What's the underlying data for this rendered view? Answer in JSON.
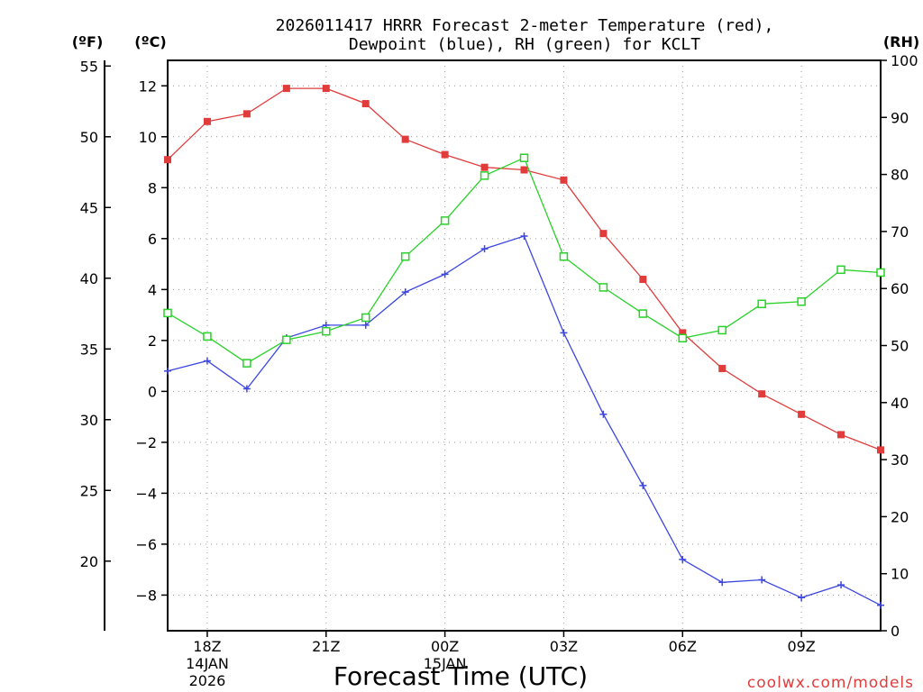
{
  "chart_data": {
    "type": "line",
    "title_line1": "2026011417 HRRR Forecast 2-meter Temperature (red),",
    "title_line2": "Dewpoint (blue), RH (green) for KCLT",
    "xlabel": "Forecast Time (UTC)",
    "credit": "coolwx.com/models",
    "units": {
      "fahrenheit": "(ºF)",
      "celsius": "(ºC)",
      "rh": "(RH)"
    },
    "x_hours": [
      17,
      18,
      19,
      20,
      21,
      22,
      23,
      24,
      25,
      26,
      27,
      28,
      29,
      30,
      31,
      32,
      33,
      34,
      35
    ],
    "x_range": [
      17,
      35
    ],
    "x_ticks": [
      {
        "hour": 18,
        "label": "18Z",
        "sub1": "14JAN",
        "sub2": "2026"
      },
      {
        "hour": 21,
        "label": "21Z",
        "sub1": "",
        "sub2": ""
      },
      {
        "hour": 24,
        "label": "00Z",
        "sub1": "15JAN",
        "sub2": ""
      },
      {
        "hour": 27,
        "label": "03Z",
        "sub1": "",
        "sub2": ""
      },
      {
        "hour": 30,
        "label": "06Z",
        "sub1": "",
        "sub2": ""
      },
      {
        "hour": 33,
        "label": "09Z",
        "sub1": "",
        "sub2": ""
      }
    ],
    "celsius_range": [
      -9.4,
      13
    ],
    "celsius_ticks": [
      12,
      10,
      8,
      6,
      4,
      2,
      0,
      -2,
      -4,
      -6,
      -8
    ],
    "celsius_tick_labels": [
      "12",
      "10",
      "8",
      "6",
      "4",
      "2",
      "0",
      "−2",
      "−4",
      "−6",
      "−8"
    ],
    "fahrenheit_ticks": [
      55,
      50,
      45,
      40,
      35,
      30,
      25,
      20
    ],
    "fahrenheit_tick_labels": [
      "55",
      "50",
      "45",
      "40",
      "35",
      "30",
      "25",
      "20"
    ],
    "rh_range": [
      0,
      100
    ],
    "rh_ticks": [
      100,
      90,
      80,
      70,
      60,
      50,
      40,
      30,
      20,
      10,
      0
    ],
    "rh_tick_labels": [
      "100",
      "90",
      "80",
      "70",
      "60",
      "50",
      "40",
      "30",
      "20",
      "10",
      "0"
    ],
    "series": [
      {
        "name": "Temperature",
        "axis": "celsius",
        "color": "#e03c3c",
        "marker": "filled-square",
        "values": [
          9.1,
          10.6,
          10.9,
          11.9,
          11.9,
          11.3,
          9.9,
          9.3,
          8.8,
          8.7,
          8.3,
          6.2,
          4.4,
          2.3,
          0.9,
          -0.1,
          -0.9,
          -1.7,
          -2.3
        ]
      },
      {
        "name": "Dewpoint",
        "axis": "celsius",
        "color": "#3c46e0",
        "marker": "plus",
        "values": [
          0.8,
          1.2,
          0.1,
          2.1,
          2.6,
          2.6,
          3.9,
          4.6,
          5.6,
          6.1,
          2.3,
          -0.9,
          -3.7,
          -6.6,
          -7.5,
          -7.4,
          -8.1,
          -7.6,
          -8.4
        ]
      },
      {
        "name": "RH",
        "axis": "rh",
        "color": "#28d228",
        "marker": "open-square",
        "values": [
          55.7,
          51.6,
          46.9,
          51.0,
          52.5,
          54.9,
          65.6,
          71.9,
          79.8,
          82.9,
          65.6,
          60.2,
          55.6,
          51.3,
          52.7,
          57.3,
          57.7,
          63.3,
          62.8
        ]
      }
    ]
  }
}
